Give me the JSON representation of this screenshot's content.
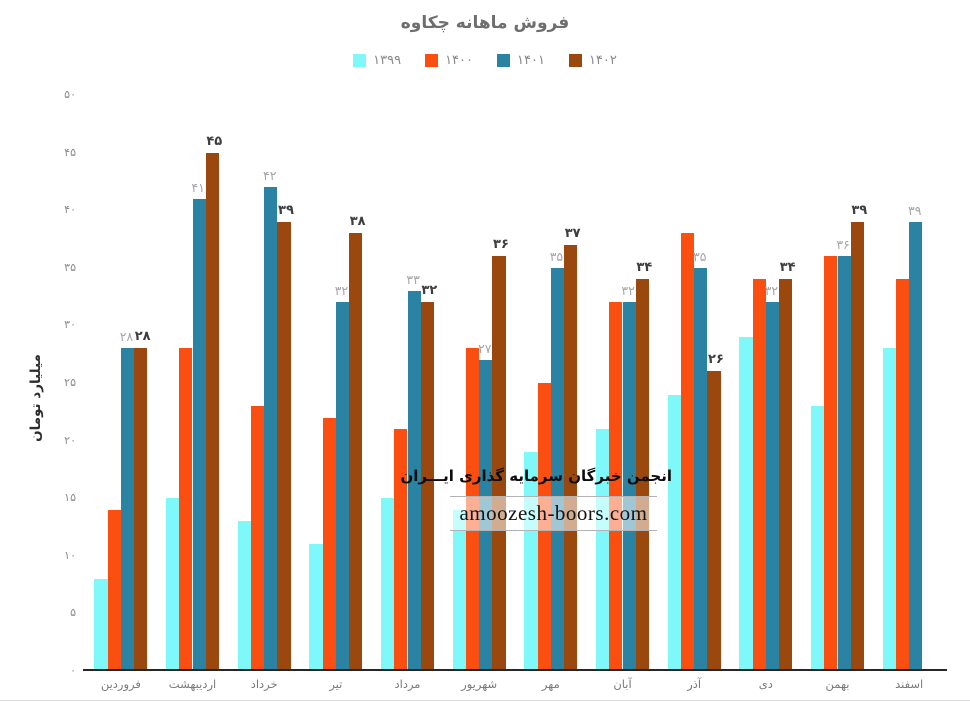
{
  "title": "فروش ماهانه چکاوه",
  "watermark": {
    "line1": "انجمن خبرگان سرمایه گذاری ایـــران",
    "line2": "amoozesh-boors.com"
  },
  "chart_data": {
    "type": "bar",
    "title": "فروش ماهانه چکاوه",
    "xlabel": "",
    "ylabel": "میلیارد تومان",
    "ylim": [
      0,
      50
    ],
    "y_ticks": [
      0,
      5,
      10,
      15,
      20,
      25,
      30,
      35,
      40,
      45,
      50
    ],
    "grid": false,
    "legend_position": "top",
    "digit_style": "persian",
    "categories": [
      "فروردین",
      "اردیبهشت",
      "خرداد",
      "تیر",
      "مرداد",
      "شهریور",
      "مهر",
      "آبان",
      "آذر",
      "دی",
      "بهمن",
      "اسفند"
    ],
    "series": [
      {
        "name": "۱۳۹۹",
        "color": "#7EF8F8",
        "labels_shown": false,
        "values": [
          8,
          15,
          13,
          11,
          15,
          14,
          19,
          21,
          24,
          29,
          23,
          28
        ]
      },
      {
        "name": "۱۴۰۰",
        "color": "#FB4E11",
        "labels_shown": false,
        "values": [
          14,
          28,
          23,
          22,
          21,
          28,
          25,
          32,
          38,
          34,
          36,
          34
        ]
      },
      {
        "name": "۱۴۰۱",
        "color": "#2A83A2",
        "labels_shown": true,
        "label_style": "gray",
        "values": [
          28,
          41,
          42,
          32,
          33,
          27,
          35,
          32,
          35,
          32,
          36,
          39
        ]
      },
      {
        "name": "۱۴۰۲",
        "color": "#9A480D",
        "labels_shown": true,
        "label_style": "bold",
        "values": [
          28,
          45,
          39,
          38,
          32,
          36,
          37,
          34,
          26,
          34,
          39,
          null
        ]
      }
    ]
  }
}
